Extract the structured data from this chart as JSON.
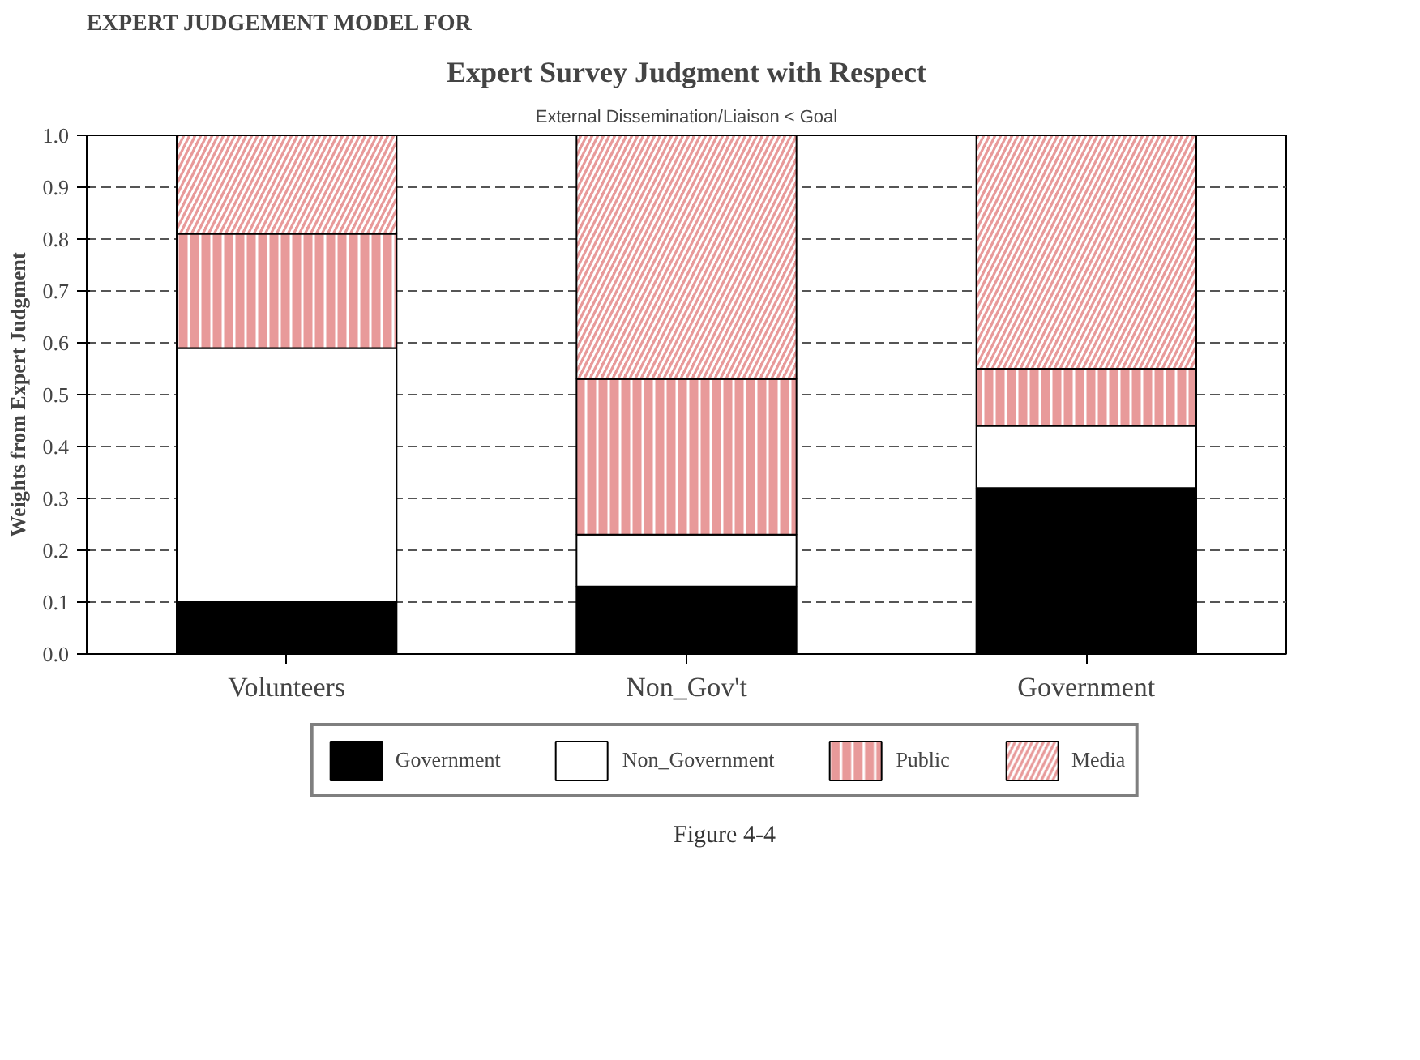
{
  "chart_data": {
    "type": "bar",
    "title": "Expert Survey Judgment with Respect",
    "subtitle": "External Dissemination/Liaison < Goal",
    "ylabel": "Weights from Expert Judgment",
    "categories": [
      "Volunteers",
      "Non_Gov't",
      "Government"
    ],
    "stacked": true,
    "series": [
      {
        "name": "Government",
        "color": "#000000",
        "values": [
          0.1,
          0.13,
          0.32
        ]
      },
      {
        "name": "Non_Government",
        "color": "#ffffff",
        "values": [
          0.49,
          0.1,
          0.12
        ]
      },
      {
        "name": "Public",
        "color": "#e89a9a",
        "values": [
          0.22,
          0.3,
          0.11
        ]
      },
      {
        "name": "Media",
        "color": "#e89a9a",
        "values": [
          0.19,
          0.47,
          0.45
        ]
      }
    ],
    "ylim": [
      0,
      1.0
    ],
    "yticks": [
      {
        "value": 0,
        "label": "0.0"
      },
      0.1,
      0.2,
      0.3,
      0.4,
      0.5,
      0.6,
      0.7,
      0.8,
      0.9,
      {
        "value": 1,
        "label": "1.0"
      }
    ],
    "grid": "y",
    "legend": "bottom",
    "annotations": [
      "EXPERT JUDGEMENT MODEL FOR",
      "Figure 4-4"
    ]
  }
}
